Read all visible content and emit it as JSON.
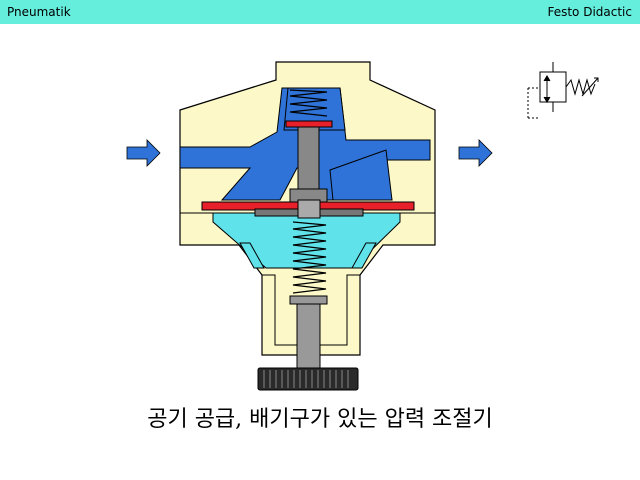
{
  "header": {
    "left_label": "Pneumatik",
    "right_label": "Festo Didactic",
    "background": "#66eedd"
  },
  "caption": "공기 공급, 배기구가 있는 압력 조절기",
  "colors": {
    "body": "#fdf8c8",
    "supply_air": "#2f73d8",
    "exhaust_chamber": "#5fe2ea",
    "diaphragm": "#e8202a",
    "seat": "#777777",
    "adjust_knob": "#2a2a2a",
    "flow_arrow": "#2f73d8"
  },
  "icons": [
    "inlet-arrow-icon",
    "outlet-arrow-icon",
    "regulator-symbol-icon"
  ]
}
